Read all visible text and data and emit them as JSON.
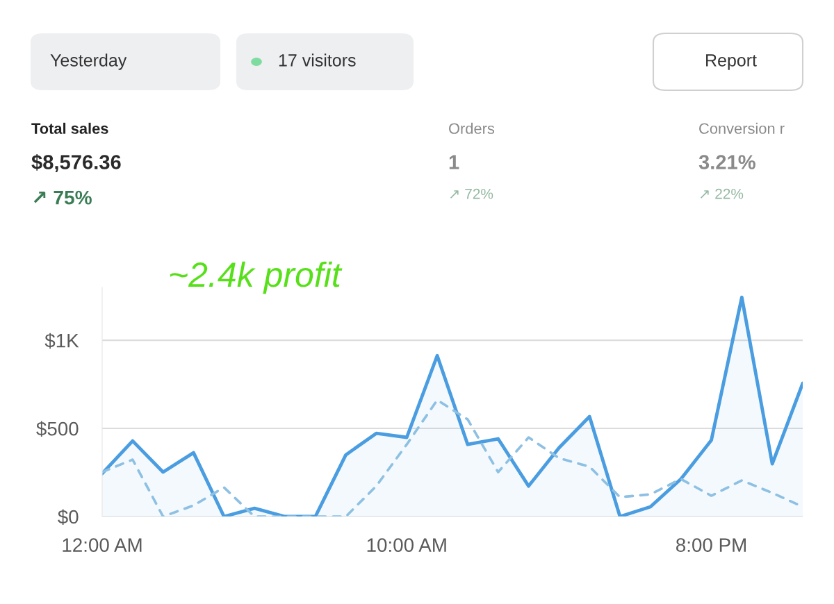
{
  "chart_data": {
    "type": "line",
    "annotations": [
      "Yesterday",
      "17 visitors",
      "Report",
      "Total sales",
      "$8,576.36",
      "↗ 75%",
      "Orders",
      "1",
      "↗ 72%",
      "Conversion r",
      "3.21%",
      "↗ 22%",
      "~2.4k profit"
    ],
    "x": [
      0,
      1,
      2,
      3,
      4,
      5,
      6,
      7,
      8,
      9,
      10,
      11,
      12,
      13,
      14,
      15,
      16,
      17,
      18,
      19,
      20,
      21,
      22,
      23
    ],
    "series": [
      {
        "type": "area",
        "color": "#4a9de0",
        "line_style": "solid",
        "values": [
          244,
          429,
          252,
          362,
          0,
          47,
          0,
          0,
          350,
          472,
          449,
          913,
          409,
          441,
          173,
          390,
          567,
          0,
          55,
          213,
          433,
          1244,
          299,
          756
        ]
      },
      {
        "color": "#8dc0e3",
        "line_style": "dashed",
        "values": [
          252,
          323,
          0,
          63,
          165,
          0,
          0,
          0,
          0,
          173,
          409,
          661,
          551,
          252,
          449,
          331,
          283,
          110,
          126,
          213,
          118,
          205,
          134,
          55
        ]
      }
    ],
    "xlim": [
      0,
      23
    ],
    "ylim": [
      0,
      1300
    ],
    "xticks": [
      {
        "value": 0,
        "label": "12:00 AM"
      },
      {
        "value": 10,
        "label": "10:00 AM"
      },
      {
        "value": 20,
        "label": "8:00 PM"
      }
    ],
    "yticks": [
      {
        "value": 0,
        "label": "$0"
      },
      {
        "value": 500,
        "label": "$500"
      },
      {
        "value": 1000,
        "label": "$1K"
      }
    ],
    "grid": "y",
    "legend": false
  }
}
